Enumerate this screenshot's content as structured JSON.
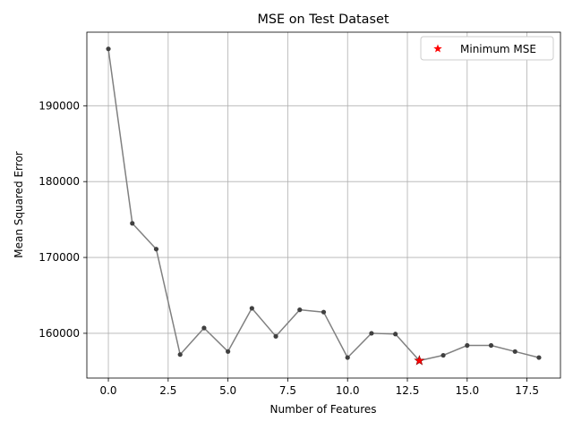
{
  "chart_data": {
    "type": "line",
    "title": "MSE on Test Dataset",
    "xlabel": "Number of Features",
    "ylabel": "Mean Squared Error",
    "xlim": [
      -0.9,
      18.9
    ],
    "ylim": [
      154100,
      199700
    ],
    "grid": true,
    "x_ticks": [
      0,
      2.5,
      5,
      7.5,
      10,
      12.5,
      15,
      17.5
    ],
    "x_tick_labels": [
      "0.0",
      "2.5",
      "5.0",
      "7.5",
      "10.0",
      "12.5",
      "15.0",
      "17.5"
    ],
    "y_ticks": [
      160000,
      170000,
      180000,
      190000
    ],
    "y_tick_labels": [
      "160000",
      "170000",
      "180000",
      "190000"
    ],
    "series": [
      {
        "x": [
          0,
          1,
          2,
          3,
          4,
          5,
          6,
          7,
          8,
          9,
          10,
          11,
          12,
          13,
          14,
          15,
          16,
          17,
          18
        ],
        "values": [
          197500,
          174500,
          171100,
          157200,
          160700,
          157600,
          163300,
          159600,
          163100,
          162800,
          156800,
          160000,
          159900,
          156400,
          157100,
          158400,
          158400,
          157600,
          156800
        ],
        "color": "#808080"
      }
    ],
    "highlight": {
      "name": "Minimum MSE",
      "x": 13,
      "y": 156400,
      "color": "#ff0000",
      "marker": "star"
    },
    "legend": {
      "placement": "top-right",
      "entries": [
        "Minimum MSE"
      ]
    }
  }
}
